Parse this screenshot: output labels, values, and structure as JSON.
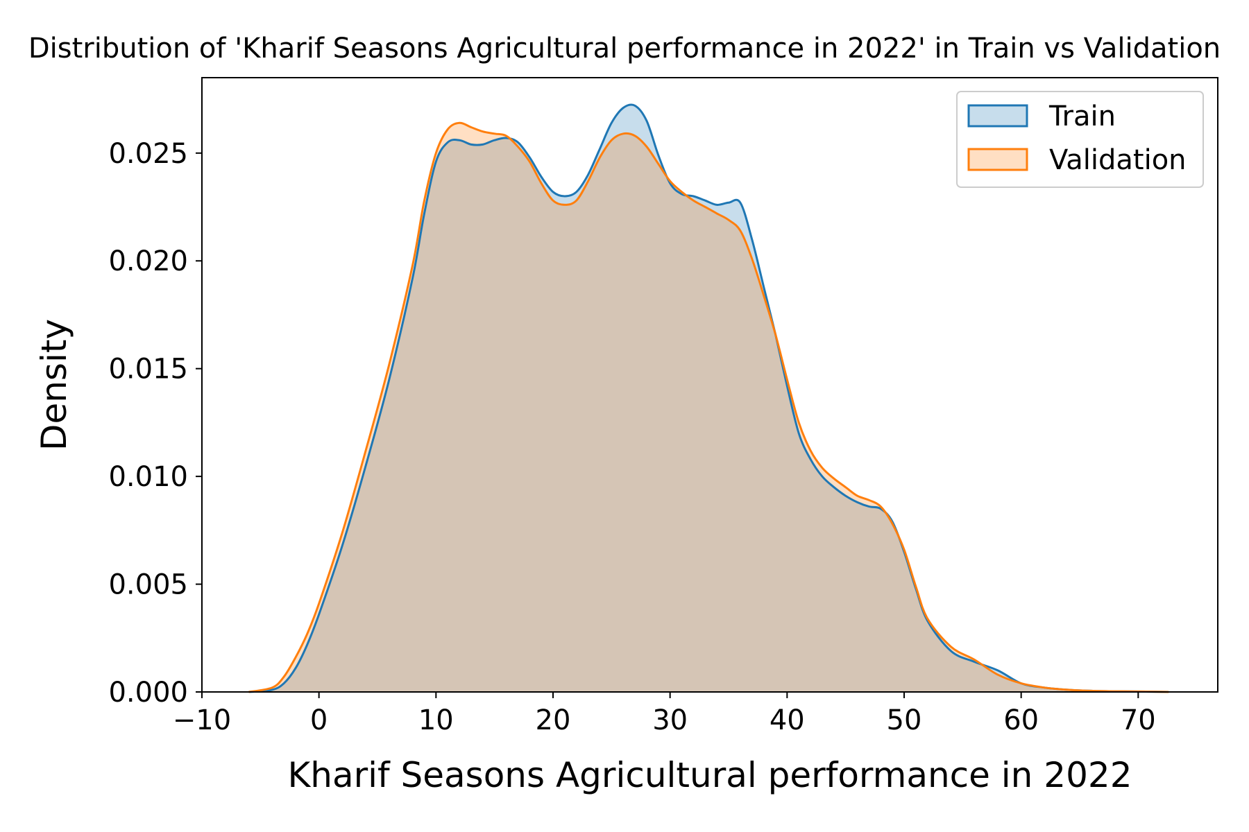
{
  "chart_data": {
    "type": "area",
    "title": "Distribution of 'Kharif Seasons  Agricultural performance in 2022' in Train vs Validation",
    "xlabel": "Kharif Seasons  Agricultural performance in 2022",
    "ylabel": "Density",
    "xlim": [
      -10,
      76.8
    ],
    "ylim": [
      0,
      0.0285
    ],
    "x_ticks": [
      -10,
      0,
      10,
      20,
      30,
      40,
      50,
      60,
      70
    ],
    "x_tick_labels": [
      "−10",
      "0",
      "10",
      "20",
      "30",
      "40",
      "50",
      "60",
      "70"
    ],
    "y_ticks": [
      0,
      0.005,
      0.01,
      0.015,
      0.02,
      0.025
    ],
    "y_tick_labels": [
      "0.000",
      "0.005",
      "0.010",
      "0.015",
      "0.020",
      "0.025"
    ],
    "grid": false,
    "legend_position": "top-right",
    "series": [
      {
        "name": "Train",
        "color": "#1f77b4",
        "x": [
          -6,
          -4,
          -3,
          -2,
          -1,
          0,
          2,
          4,
          6,
          8,
          9,
          10,
          11,
          12,
          13,
          14,
          15,
          16,
          17,
          18,
          19,
          20,
          21,
          22,
          23,
          24,
          25,
          26,
          27,
          28,
          29,
          30,
          31,
          32,
          33,
          34,
          35,
          36,
          37,
          38,
          39,
          40,
          41,
          42,
          43,
          44,
          45,
          46,
          47,
          48,
          49,
          50,
          51,
          52,
          54,
          56,
          58,
          60,
          62,
          64,
          66,
          68,
          70,
          72.6
        ],
        "y": [
          0,
          0.0001,
          0.0004,
          0.0011,
          0.0022,
          0.0036,
          0.0068,
          0.0105,
          0.0145,
          0.0192,
          0.0222,
          0.0246,
          0.0255,
          0.0256,
          0.0254,
          0.0254,
          0.0256,
          0.0257,
          0.0255,
          0.0248,
          0.0239,
          0.0232,
          0.023,
          0.0232,
          0.024,
          0.0252,
          0.0264,
          0.0271,
          0.0272,
          0.0265,
          0.0249,
          0.0236,
          0.0231,
          0.023,
          0.0228,
          0.0226,
          0.0227,
          0.0227,
          0.021,
          0.0188,
          0.0166,
          0.0142,
          0.012,
          0.0108,
          0.01,
          0.0095,
          0.0091,
          0.0088,
          0.0086,
          0.0085,
          0.0079,
          0.0065,
          0.0048,
          0.0033,
          0.0019,
          0.0014,
          0.001,
          0.0004,
          0.0002,
          0.0001,
          5e-05,
          3e-05,
          2e-05,
          0
        ]
      },
      {
        "name": "Validation",
        "color": "#ff7f0e",
        "x": [
          -6,
          -4,
          -3,
          -2,
          -1,
          0,
          2,
          4,
          6,
          8,
          9,
          10,
          11,
          12,
          13,
          14,
          15,
          16,
          17,
          18,
          19,
          20,
          21,
          22,
          23,
          24,
          25,
          26,
          27,
          28,
          29,
          30,
          31,
          32,
          33,
          34,
          35,
          36,
          37,
          38,
          39,
          40,
          41,
          42,
          43,
          44,
          45,
          46,
          47,
          48,
          49,
          50,
          51,
          52,
          54,
          56,
          58,
          60,
          62,
          64,
          66,
          68,
          70,
          72.6
        ],
        "y": [
          0,
          0.0002,
          0.0007,
          0.0016,
          0.0027,
          0.0041,
          0.0074,
          0.0112,
          0.0152,
          0.0198,
          0.0228,
          0.025,
          0.0261,
          0.0264,
          0.0262,
          0.026,
          0.0259,
          0.0258,
          0.0253,
          0.0246,
          0.0236,
          0.0228,
          0.0226,
          0.0228,
          0.0237,
          0.0248,
          0.0256,
          0.0259,
          0.0258,
          0.0253,
          0.0245,
          0.0237,
          0.0232,
          0.0228,
          0.0225,
          0.0222,
          0.0219,
          0.0214,
          0.0201,
          0.0184,
          0.0166,
          0.0145,
          0.0125,
          0.0112,
          0.0104,
          0.0099,
          0.0095,
          0.0091,
          0.0089,
          0.0086,
          0.0078,
          0.0066,
          0.0049,
          0.0034,
          0.0021,
          0.0015,
          0.0008,
          0.0004,
          0.0002,
          0.0001,
          5e-05,
          3e-05,
          2e-05,
          0
        ]
      }
    ]
  }
}
